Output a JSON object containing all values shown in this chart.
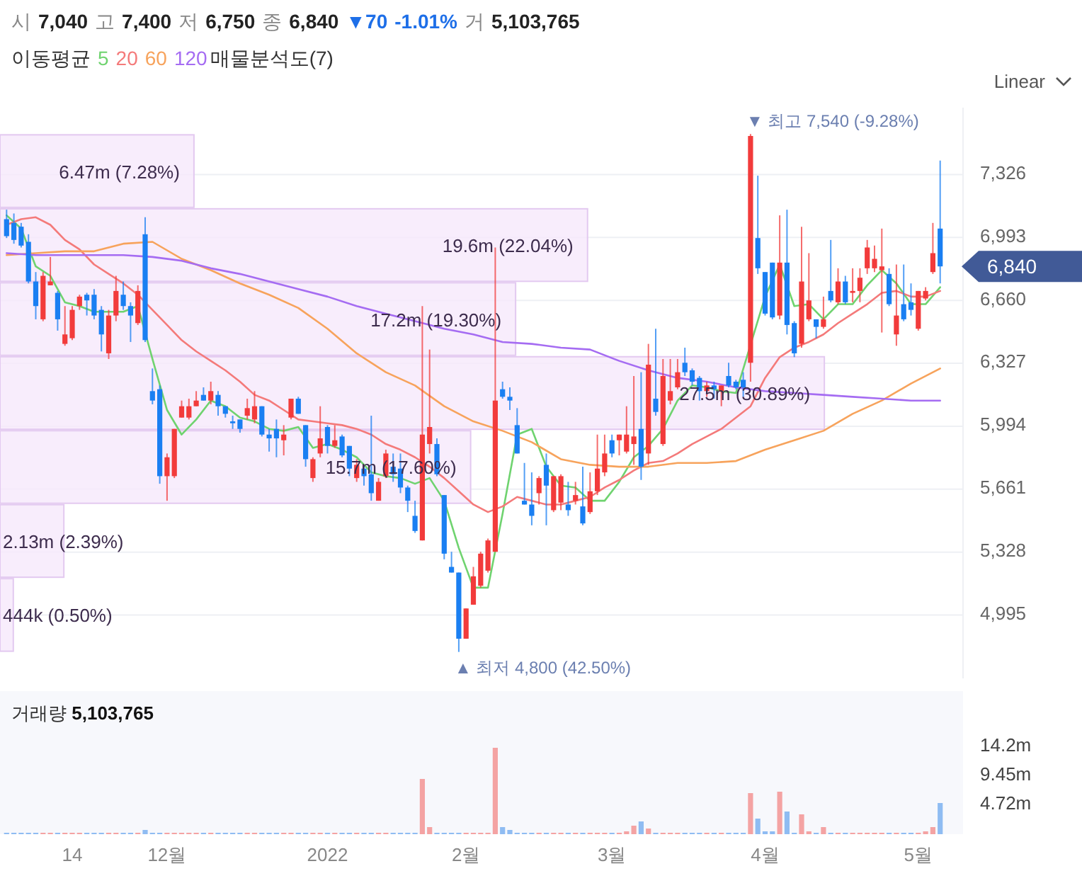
{
  "chart_data": [
    {
      "type": "candlestick",
      "subtitle": "시 7,040 고 7,400 저 6,750 종 6,840 ▼70 -1.01% 거 5,103,765",
      "legend_title": "이동평균",
      "legend": "top left",
      "grid": "y",
      "tick_labels": "y",
      "categories": [
        null,
        null,
        null,
        null,
        null,
        null,
        null,
        null,
        null,
        null,
        null,
        null,
        null,
        null,
        null,
        null,
        null,
        null,
        null,
        null,
        null,
        null,
        null,
        null,
        null,
        null,
        null,
        null,
        null,
        null,
        null,
        null,
        null,
        null,
        null,
        null,
        null,
        null,
        null,
        null,
        null,
        null,
        null,
        null,
        null,
        null,
        null,
        null,
        null,
        null,
        null,
        null,
        null,
        null,
        null,
        null,
        null,
        null,
        null,
        null,
        null,
        null,
        null,
        null,
        null,
        null,
        null,
        null,
        null,
        null,
        null,
        null,
        null,
        null,
        null,
        null,
        null,
        null,
        null,
        null,
        null,
        null,
        null,
        null,
        null,
        null,
        null,
        null,
        null,
        null,
        null,
        null,
        null,
        null,
        null,
        null,
        null,
        null,
        null,
        null,
        null,
        null,
        null,
        null,
        null,
        null,
        null,
        null,
        null,
        null,
        null,
        null,
        null,
        null,
        null,
        null,
        null,
        null,
        null,
        null,
        null,
        null,
        null,
        null,
        null,
        null,
        null,
        null,
        null
      ],
      "ohlc": [
        [
          7090,
          7140,
          6990,
          7000
        ],
        [
          7070,
          7120,
          6960,
          6980
        ],
        [
          7050,
          7070,
          6940,
          6950
        ],
        [
          6970,
          7010,
          6750,
          6760
        ],
        [
          6760,
          6810,
          6560,
          6630
        ],
        [
          6560,
          6810,
          6550,
          6790
        ],
        [
          6740,
          6890,
          6740,
          6760
        ],
        [
          6700,
          6710,
          6500,
          6560
        ],
        [
          6430,
          6630,
          6420,
          6480
        ],
        [
          6460,
          6630,
          6450,
          6610
        ],
        [
          6630,
          6690,
          6610,
          6680
        ],
        [
          6690,
          6700,
          6580,
          6660
        ],
        [
          6690,
          6720,
          6560,
          6580
        ],
        [
          6610,
          6630,
          6390,
          6480
        ],
        [
          6380,
          6610,
          6350,
          6580
        ],
        [
          6580,
          6790,
          6550,
          6710
        ],
        [
          6690,
          6760,
          6610,
          6630
        ],
        [
          6630,
          6650,
          6440,
          6580
        ],
        [
          6540,
          6740,
          6530,
          6710
        ],
        [
          7010,
          7100,
          6440,
          6450
        ],
        [
          6180,
          6300,
          6110,
          6130
        ],
        [
          6190,
          6210,
          5690,
          5730
        ],
        [
          5730,
          5850,
          5600,
          5830
        ],
        [
          5730,
          5980,
          5720,
          5980
        ],
        [
          6040,
          6130,
          6040,
          6100
        ],
        [
          6040,
          6140,
          6030,
          6100
        ],
        [
          6100,
          6180,
          6100,
          6130
        ],
        [
          6160,
          6200,
          6130,
          6130
        ],
        [
          6130,
          6230,
          6110,
          6180
        ],
        [
          6160,
          6180,
          6050,
          6100
        ],
        [
          6100,
          6100,
          6040,
          6060
        ],
        [
          6020,
          6050,
          5980,
          6010
        ],
        [
          6030,
          6030,
          5960,
          5980
        ],
        [
          6050,
          6140,
          6030,
          6090
        ],
        [
          6030,
          6180,
          6010,
          6100
        ],
        [
          6100,
          6100,
          5940,
          5950
        ],
        [
          5950,
          5980,
          5860,
          5930
        ],
        [
          5980,
          6030,
          5830,
          5930
        ],
        [
          5920,
          6000,
          5840,
          5950
        ],
        [
          6040,
          6140,
          6030,
          6140
        ],
        [
          6140,
          6150,
          6060,
          6060
        ],
        [
          6000,
          6000,
          5780,
          5820
        ],
        [
          5720,
          5830,
          5700,
          5820
        ],
        [
          5850,
          6100,
          5830,
          5930
        ],
        [
          5990,
          6000,
          5850,
          5890
        ],
        [
          5890,
          6000,
          5880,
          5920
        ],
        [
          5940,
          5950,
          5830,
          5840
        ],
        [
          5890,
          5890,
          5730,
          5770
        ],
        [
          5720,
          5820,
          5700,
          5790
        ],
        [
          5770,
          5780,
          5680,
          5730
        ],
        [
          5740,
          6050,
          5600,
          5640
        ],
        [
          5600,
          5720,
          5600,
          5700
        ],
        [
          5730,
          5870,
          5720,
          5850
        ],
        [
          5780,
          5850,
          5700,
          5740
        ],
        [
          5770,
          5850,
          5640,
          5670
        ],
        [
          5670,
          5680,
          5540,
          5600
        ],
        [
          5520,
          5600,
          5430,
          5440
        ],
        [
          5390,
          6630,
          5390,
          5950
        ],
        [
          5900,
          6400,
          5850,
          5990
        ],
        [
          5900,
          5930,
          5730,
          5740
        ],
        [
          5630,
          5630,
          5290,
          5320
        ],
        [
          5250,
          5330,
          5220,
          5220
        ],
        [
          5220,
          5220,
          4800,
          4870
        ],
        [
          4870,
          5030,
          4870,
          5030
        ],
        [
          5050,
          5250,
          5050,
          5200
        ],
        [
          5150,
          5330,
          5140,
          5320
        ],
        [
          5230,
          5400,
          5220,
          5390
        ],
        [
          5330,
          6940,
          5330,
          6130
        ],
        [
          6190,
          6230,
          6140,
          6150
        ],
        [
          6150,
          6200,
          6080,
          6130
        ],
        [
          6000,
          6090,
          5850,
          5850
        ],
        [
          5600,
          5800,
          5580,
          5580
        ],
        [
          5580,
          5750,
          5470,
          5520
        ],
        [
          5640,
          5730,
          5580,
          5720
        ],
        [
          5790,
          5850,
          5470,
          5680
        ],
        [
          5550,
          5730,
          5540,
          5730
        ],
        [
          5590,
          5740,
          5550,
          5730
        ],
        [
          5580,
          5700,
          5520,
          5550
        ],
        [
          5600,
          5700,
          5580,
          5630
        ],
        [
          5570,
          5780,
          5470,
          5480
        ],
        [
          5540,
          5750,
          5530,
          5650
        ],
        [
          5650,
          5950,
          5630,
          5770
        ],
        [
          5750,
          5950,
          5730,
          5850
        ],
        [
          5920,
          5950,
          5830,
          5850
        ],
        [
          5920,
          5950,
          5840,
          5950
        ],
        [
          5860,
          6100,
          5850,
          5950
        ],
        [
          5900,
          6260,
          5790,
          5940
        ],
        [
          5980,
          6280,
          5710,
          5780
        ],
        [
          5850,
          6430,
          5790,
          6320
        ],
        [
          6140,
          6510,
          6050,
          6070
        ],
        [
          5900,
          6350,
          5890,
          6260
        ],
        [
          6130,
          6350,
          6110,
          6180
        ],
        [
          6200,
          6350,
          6190,
          6280
        ],
        [
          6330,
          6410,
          6260,
          6280
        ],
        [
          6290,
          6300,
          6210,
          6230
        ],
        [
          6250,
          6260,
          6130,
          6180
        ],
        [
          6180,
          6230,
          6150,
          6210
        ],
        [
          6210,
          6230,
          6140,
          6190
        ],
        [
          6180,
          6210,
          6100,
          6210
        ],
        [
          6260,
          6330,
          6200,
          6210
        ],
        [
          6230,
          6240,
          6190,
          6200
        ],
        [
          6240,
          6280,
          6150,
          6200
        ],
        [
          6330,
          7540,
          6230,
          7530
        ],
        [
          6990,
          7320,
          6800,
          6830
        ],
        [
          6810,
          6810,
          6580,
          6590
        ],
        [
          6860,
          6860,
          6560,
          6570
        ],
        [
          6580,
          7110,
          6560,
          6860
        ],
        [
          6860,
          7140,
          6480,
          6530
        ],
        [
          6540,
          6550,
          6360,
          6380
        ],
        [
          6430,
          7050,
          6410,
          6760
        ],
        [
          6560,
          6910,
          6550,
          6660
        ],
        [
          6560,
          6560,
          6460,
          6520
        ],
        [
          6520,
          6680,
          6510,
          6560
        ],
        [
          6710,
          6980,
          6650,
          6660
        ],
        [
          6650,
          6830,
          6640,
          6760
        ],
        [
          6760,
          6790,
          6640,
          6650
        ],
        [
          6700,
          6830,
          6650,
          6710
        ],
        [
          6710,
          6830,
          6650,
          6780
        ],
        [
          6830,
          6980,
          6800,
          6940
        ],
        [
          6830,
          6950,
          6810,
          6880
        ],
        [
          6820,
          7040,
          6490,
          6840
        ],
        [
          6800,
          6830,
          6630,
          6640
        ],
        [
          6480,
          6850,
          6420,
          6580
        ],
        [
          6640,
          6850,
          6550,
          6560
        ],
        [
          6650,
          6750,
          6580,
          6610
        ],
        [
          6510,
          6710,
          6500,
          6710
        ],
        [
          6670,
          6730,
          6660,
          6710
        ],
        [
          6810,
          7070,
          6800,
          6910
        ],
        [
          7040,
          7400,
          6750,
          6840
        ]
      ],
      "series": [
        {
          "name": "5",
          "type": "line",
          "color": "#6fd36f",
          "values": [
            7110,
            null,
            7040,
            null,
            6840,
            null,
            6790,
            null,
            6650,
            null,
            6630,
            null,
            6600,
            null,
            6600,
            null,
            6600,
            null,
            6630,
            null,
            6350,
            null,
            6080,
            null,
            5950,
            null,
            6030,
            null,
            6130,
            null,
            6100,
            null,
            6040,
            null,
            6020,
            null,
            5980,
            null,
            5970,
            null,
            5990,
            null,
            5880,
            null,
            5900,
            null,
            5870,
            null,
            5830,
            null,
            5750,
            null,
            5730,
            null,
            5720,
            null,
            5690,
            null,
            5720,
            null,
            5600,
            null,
            5350,
            null,
            5140,
            null,
            5140,
            null,
            5530,
            null,
            5950,
            null,
            5980,
            null,
            5780,
            null,
            5680,
            null,
            5670,
            null,
            5600,
            null,
            5600,
            null,
            5700,
            null,
            5830,
            null,
            5890,
            null,
            5980,
            null,
            6130,
            null,
            6210,
            null,
            6200,
            null,
            6180,
            null,
            6170,
            null,
            null,
            null,
            6680,
            null,
            6850,
            null,
            6630,
            null,
            6640,
            null,
            6560,
            null,
            6640,
            null,
            6640,
            null,
            6740,
            null,
            6820,
            null,
            6750,
            null,
            6640,
            null,
            6640,
            null,
            6730
          ]
        },
        {
          "name": "20",
          "type": "line",
          "color": "#f47a7a",
          "values": [
            7060,
            null,
            7090,
            null,
            7100,
            null,
            7060,
            null,
            6980,
            null,
            6930,
            null,
            6850,
            null,
            6800,
            null,
            6750,
            null,
            6690,
            null,
            6610,
            null,
            6530,
            null,
            6450,
            null,
            6390,
            null,
            6340,
            null,
            6290,
            null,
            6230,
            null,
            6160,
            null,
            6130,
            null,
            6080,
            null,
            6030,
            null,
            6020,
            null,
            6010,
            null,
            6000,
            null,
            5980,
            null,
            5950,
            null,
            5900,
            null,
            5870,
            null,
            5830,
            null,
            5780,
            null,
            5720,
            null,
            5650,
            null,
            5580,
            null,
            5540,
            null,
            5570,
            null,
            5620,
            null,
            5600,
            null,
            5580,
            null,
            5580,
            null,
            5600,
            null,
            5620,
            null,
            5670,
            null,
            5710,
            null,
            5760,
            null,
            5800,
            null,
            5810,
            null,
            5850,
            null,
            5900,
            null,
            5940,
            null,
            5980,
            null,
            6040,
            null,
            6100,
            null,
            6250,
            null,
            6360,
            null,
            6410,
            null,
            6440,
            null,
            6480,
            null,
            6540,
            null,
            6590,
            null,
            6640,
            null,
            6700,
            null,
            6710,
            null,
            6680,
            null,
            6680,
            null,
            6710
          ]
        },
        {
          "name": "60",
          "type": "line",
          "color": "#f7a35c",
          "values": [
            6900,
            null,
            null,
            null,
            6910,
            null,
            null,
            null,
            6920,
            null,
            null,
            null,
            6920,
            null,
            null,
            null,
            6960,
            null,
            null,
            null,
            6970,
            null,
            null,
            null,
            6880,
            null,
            null,
            null,
            6820,
            null,
            null,
            null,
            6750,
            null,
            null,
            null,
            6690,
            null,
            null,
            null,
            6620,
            null,
            null,
            null,
            6510,
            null,
            null,
            null,
            6380,
            null,
            null,
            null,
            6280,
            null,
            null,
            null,
            6210,
            null,
            null,
            null,
            6100,
            null,
            null,
            null,
            6020,
            null,
            null,
            null,
            5970,
            null,
            null,
            null,
            5910,
            null,
            null,
            null,
            5820,
            null,
            null,
            null,
            5790,
            null,
            null,
            null,
            5780,
            null,
            null,
            null,
            5780,
            null,
            null,
            null,
            5800,
            null,
            null,
            null,
            5800,
            null,
            null,
            null,
            5810,
            null,
            null,
            null,
            5870,
            null,
            null,
            null,
            5920,
            null,
            null,
            null,
            5970,
            null,
            null,
            null,
            6060,
            null,
            null,
            null,
            6130,
            null,
            null,
            null,
            6220,
            null,
            null,
            null,
            6300
          ]
        },
        {
          "name": "120",
          "type": "line",
          "color": "#a56cf2",
          "values": [
            6910,
            null,
            null,
            null,
            6900,
            null,
            null,
            null,
            6900,
            null,
            null,
            null,
            6900,
            null,
            null,
            null,
            6900,
            null,
            null,
            null,
            6890,
            null,
            null,
            null,
            6870,
            null,
            null,
            null,
            6830,
            null,
            null,
            null,
            6800,
            null,
            null,
            null,
            6760,
            null,
            null,
            null,
            6720,
            null,
            null,
            null,
            6680,
            null,
            null,
            null,
            6630,
            null,
            null,
            null,
            6590,
            null,
            null,
            null,
            6550,
            null,
            null,
            null,
            6510,
            null,
            null,
            null,
            6480,
            null,
            null,
            null,
            6440,
            null,
            null,
            null,
            6430,
            null,
            null,
            null,
            6410,
            null,
            null,
            null,
            6400,
            null,
            null,
            null,
            6340,
            null,
            null,
            null,
            6290,
            null,
            null,
            null,
            6250,
            null,
            null,
            null,
            6230,
            null,
            null,
            null,
            6200,
            null,
            null,
            null,
            6180,
            null,
            null,
            null,
            6170,
            null,
            null,
            null,
            6160,
            null,
            null,
            null,
            6150,
            null,
            null,
            null,
            6140,
            null,
            null,
            null,
            6130,
            null,
            null,
            null,
            6130
          ]
        }
      ],
      "ylim": [
        4660,
        7680
      ],
      "yticks": [
        {
          "value": 4995,
          "label": "4,995"
        },
        {
          "value": 5328,
          "label": "5,328"
        },
        {
          "value": 5661,
          "label": "5,661"
        },
        {
          "value": 5994,
          "label": "5,994"
        },
        {
          "value": 6327,
          "label": "6,327"
        },
        {
          "value": 6660,
          "label": "6,660"
        },
        {
          "value": 6993,
          "label": "6,993"
        },
        {
          "value": 7326,
          "label": "7,326"
        }
      ],
      "annotations": [
        "▼ 최고 7,540 (-9.28%)",
        "▲ 최저 4,800 (42.50%)",
        "6,840",
        "Linear"
      ]
    },
    {
      "type": "bar",
      "orientation": "horizontal",
      "title": "매물분석도(7)",
      "tick_labels": false,
      "color": "#f6e8fb",
      "categories": [
        null,
        null,
        null,
        null,
        null,
        null,
        null
      ],
      "values": [
        6470000,
        19600000,
        17200000,
        27500000,
        15700000,
        2130000,
        444000
      ],
      "value_labels": [
        "6.47m (7.28%)",
        "19.6m (22.04%)",
        "17.2m (19.30%)",
        "27.5m (30.89%)",
        "15.7m (17.60%)",
        "2.13m (2.39%)",
        "444k (0.50%)"
      ]
    },
    {
      "type": "bar",
      "title": "거래량 5,103,765",
      "categories": [
        null,
        null,
        null,
        null,
        null,
        null,
        null,
        null,
        null,
        "14",
        null,
        null,
        null,
        null,
        null,
        null,
        null,
        null,
        null,
        null,
        null,
        null,
        "12월",
        null,
        null,
        null,
        null,
        null,
        null,
        null,
        null,
        null,
        null,
        null,
        null,
        null,
        null,
        null,
        null,
        null,
        null,
        null,
        null,
        null,
        "2022",
        null,
        null,
        null,
        null,
        null,
        null,
        null,
        null,
        null,
        null,
        null,
        null,
        null,
        null,
        null,
        null,
        null,
        null,
        "2월",
        null,
        null,
        null,
        null,
        null,
        null,
        null,
        null,
        null,
        null,
        null,
        null,
        null,
        null,
        null,
        null,
        null,
        null,
        null,
        "3월",
        null,
        null,
        null,
        null,
        null,
        null,
        null,
        null,
        null,
        null,
        null,
        null,
        null,
        null,
        null,
        null,
        null,
        null,
        null,
        null,
        "4월",
        null,
        null,
        null,
        null,
        null,
        null,
        null,
        null,
        null,
        null,
        null,
        null,
        null,
        null,
        null,
        null,
        null,
        null,
        null,
        null,
        "5월",
        null,
        null,
        null
      ],
      "values": [
        0.2,
        0.2,
        0.2,
        0.2,
        0.2,
        0.2,
        0.2,
        0.2,
        0.2,
        0.2,
        0.2,
        0.2,
        0.2,
        0.2,
        0.2,
        0.2,
        0.2,
        0.2,
        0.2,
        0.7,
        0.2,
        0.2,
        0.2,
        0.2,
        0.2,
        0.2,
        0.2,
        0.2,
        0.2,
        0.2,
        0.2,
        0.2,
        0.2,
        0.2,
        0.2,
        0.2,
        0.2,
        0.2,
        0.2,
        0.2,
        0.2,
        0.2,
        0.2,
        0.2,
        0.2,
        0.2,
        0.2,
        0.2,
        0.2,
        0.2,
        0.2,
        0.2,
        0.2,
        0.2,
        0.2,
        0.2,
        0.2,
        8.9,
        1.2,
        0.3,
        0.3,
        0.2,
        0.2,
        0.2,
        0.2,
        0.2,
        0.2,
        13.9,
        1.2,
        0.7,
        0.3,
        0.3,
        0.2,
        0.2,
        0.2,
        0.2,
        0.2,
        0.2,
        0.2,
        0.2,
        0.2,
        0.2,
        0.2,
        0.2,
        0.2,
        0.4,
        1.4,
        2.0,
        1.0,
        0.2,
        0.2,
        0.2,
        0.2,
        0.2,
        0.2,
        0.2,
        0.2,
        0.2,
        0.2,
        0.2,
        0.2,
        0.2,
        6.6,
        2.5,
        0.4,
        0.4,
        6.9,
        3.6,
        0.3,
        3.3,
        0.4,
        0.2,
        1.2,
        0.2,
        0.2,
        0.2,
        0.2,
        0.2,
        0.2,
        0.2,
        0.2,
        0.2,
        0.2,
        0.2,
        0.2,
        0.2,
        0.5,
        1.2,
        5.1
      ],
      "colors": [
        "#8fbcf2",
        "#8fbcf2",
        "#8fbcf2",
        "#8fbcf2",
        "#8fbcf2",
        "#f4a3a3",
        "#f4a3a3",
        "#8fbcf2",
        "#f4a3a3",
        "#f4a3a3",
        "#f4a3a3",
        "#8fbcf2",
        "#8fbcf2",
        "#8fbcf2",
        "#f4a3a3",
        "#f4a3a3",
        "#8fbcf2",
        "#8fbcf2",
        "#f4a3a3",
        "#8fbcf2",
        "#8fbcf2",
        "#8fbcf2",
        "#f4a3a3",
        "#f4a3a3",
        "#f4a3a3",
        "#f4a3a3",
        "#f4a3a3",
        "#8fbcf2",
        "#f4a3a3",
        "#8fbcf2",
        "#8fbcf2",
        "#8fbcf2",
        "#8fbcf2",
        "#f4a3a3",
        "#f4a3a3",
        "#8fbcf2",
        "#8fbcf2",
        "#8fbcf2",
        "#f4a3a3",
        "#f4a3a3",
        "#8fbcf2",
        "#8fbcf2",
        "#f4a3a3",
        "#f4a3a3",
        "#8fbcf2",
        "#f4a3a3",
        "#8fbcf2",
        "#8fbcf2",
        "#f4a3a3",
        "#8fbcf2",
        "#8fbcf2",
        "#f4a3a3",
        "#f4a3a3",
        "#8fbcf2",
        "#8fbcf2",
        "#8fbcf2",
        "#8fbcf2",
        "#f4a3a3",
        "#f4a3a3",
        "#8fbcf2",
        "#8fbcf2",
        "#8fbcf2",
        "#8fbcf2",
        "#f4a3a3",
        "#f4a3a3",
        "#f4a3a3",
        "#f4a3a3",
        "#f4a3a3",
        "#8fbcf2",
        "#8fbcf2",
        "#8fbcf2",
        "#8fbcf2",
        "#8fbcf2",
        "#f4a3a3",
        "#8fbcf2",
        "#f4a3a3",
        "#f4a3a3",
        "#8fbcf2",
        "#f4a3a3",
        "#8fbcf2",
        "#f4a3a3",
        "#f4a3a3",
        "#f4a3a3",
        "#8fbcf2",
        "#f4a3a3",
        "#f4a3a3",
        "#f4a3a3",
        "#8fbcf2",
        "#f4a3a3",
        "#8fbcf2",
        "#f4a3a3",
        "#f4a3a3",
        "#f4a3a3",
        "#8fbcf2",
        "#8fbcf2",
        "#8fbcf2",
        "#f4a3a3",
        "#8fbcf2",
        "#f4a3a3",
        "#8fbcf2",
        "#8fbcf2",
        "#8fbcf2",
        "#f4a3a3",
        "#8fbcf2",
        "#8fbcf2",
        "#8fbcf2",
        "#f4a3a3",
        "#8fbcf2",
        "#8fbcf2",
        "#f4a3a3",
        "#f4a3a3",
        "#8fbcf2",
        "#f4a3a3",
        "#8fbcf2",
        "#f4a3a3",
        "#8fbcf2",
        "#f4a3a3",
        "#f4a3a3",
        "#f4a3a3",
        "#f4a3a3",
        "#f4a3a3",
        "#8fbcf2",
        "#f4a3a3",
        "#8fbcf2",
        "#8fbcf2",
        "#f4a3a3",
        "#f4a3a3",
        "#f4a3a3",
        "#8fbcf2"
      ],
      "ylim": [
        0,
        22.5
      ],
      "yticks": [
        {
          "value": 4.72,
          "label": "4.72m"
        },
        {
          "value": 9.45,
          "label": "9.45m"
        },
        {
          "value": 14.2,
          "label": "14.2m"
        }
      ]
    }
  ]
}
